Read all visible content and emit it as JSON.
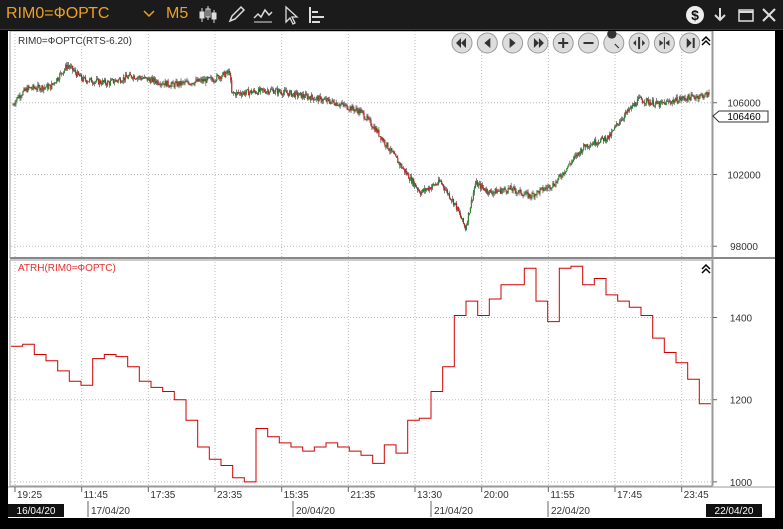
{
  "toolbar": {
    "symbol": "RIM0=ФОРТС",
    "interval": "M5"
  },
  "chart_data": [
    {
      "type": "candlestick",
      "title": "RIM0=ФОРТС(RTS-6.20)",
      "last_price_label": "106460",
      "y_ticks": [
        98000,
        102000,
        106000
      ],
      "ylim": [
        97400,
        110000
      ],
      "x_ticks": [
        "19:25",
        "11:45",
        "17:35",
        "23:35",
        "15:35",
        "21:35",
        "13:30",
        "20:00",
        "11:55",
        "17:45",
        "23:45"
      ],
      "date_labels": [
        "16/04/20",
        "17/04/20",
        "20/04/20",
        "21/04/20",
        "22/04/20",
        "22/04/20"
      ],
      "trend": [
        [
          0,
          105900
        ],
        [
          5,
          106350
        ],
        [
          15,
          106800
        ],
        [
          38,
          106900
        ],
        [
          55,
          108100
        ],
        [
          70,
          107300
        ],
        [
          95,
          107100
        ],
        [
          120,
          107500
        ],
        [
          160,
          107000
        ],
        [
          200,
          107300
        ],
        [
          218,
          107700
        ],
        [
          220,
          106500
        ],
        [
          260,
          106700
        ],
        [
          300,
          106300
        ],
        [
          325,
          106000
        ],
        [
          350,
          105500
        ],
        [
          365,
          104500
        ],
        [
          390,
          102500
        ],
        [
          410,
          101000
        ],
        [
          430,
          101600
        ],
        [
          445,
          100300
        ],
        [
          455,
          99000
        ],
        [
          465,
          101500
        ],
        [
          480,
          101000
        ],
        [
          500,
          101200
        ],
        [
          520,
          100800
        ],
        [
          545,
          101500
        ],
        [
          560,
          102600
        ],
        [
          575,
          103600
        ],
        [
          600,
          104100
        ],
        [
          610,
          105000
        ],
        [
          630,
          106200
        ],
        [
          650,
          105900
        ],
        [
          670,
          106200
        ],
        [
          700,
          106460
        ]
      ],
      "grid": true
    },
    {
      "type": "line",
      "title": "ATRH(RIM0=ФОРТС)",
      "y_ticks": [
        1000,
        1200,
        1400
      ],
      "ylim": [
        990,
        1540
      ],
      "values": [
        1330,
        1335,
        1310,
        1295,
        1270,
        1245,
        1235,
        1300,
        1310,
        1305,
        1280,
        1245,
        1230,
        1220,
        1200,
        1150,
        1085,
        1055,
        1040,
        1010,
        1000,
        1130,
        1110,
        1095,
        1085,
        1075,
        1085,
        1095,
        1085,
        1075,
        1065,
        1045,
        1090,
        1070,
        1150,
        1155,
        1220,
        1280,
        1405,
        1440,
        1405,
        1445,
        1480,
        1480,
        1520,
        1440,
        1390,
        1520,
        1525,
        1480,
        1495,
        1455,
        1440,
        1425,
        1405,
        1350,
        1315,
        1290,
        1250,
        1190
      ],
      "color": "#d00000",
      "grid": true
    }
  ]
}
